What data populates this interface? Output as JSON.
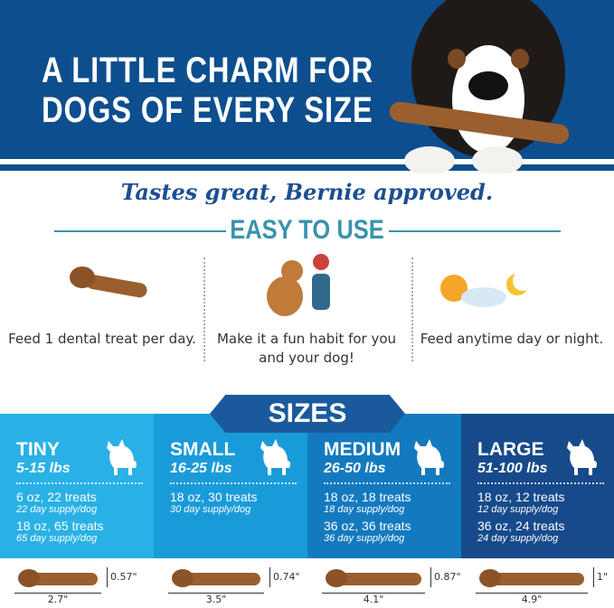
{
  "header": {
    "title_lines": [
      "A LITTLE CHARM FOR",
      "DOGS OF EVERY SIZE"
    ],
    "bg_color": "#0d4e8e"
  },
  "tagline": "Tastes great, Bernie approved.",
  "easy": {
    "heading": "EASY TO USE",
    "color": "#3a93ad",
    "items": [
      {
        "icon": "dental-treat-icon",
        "text": "Feed 1 dental treat per day."
      },
      {
        "icon": "dog-high-five-icon",
        "text": "Make it a fun habit for you and your dog!"
      },
      {
        "icon": "sun-moon-icon",
        "text": "Feed anytime day or night."
      }
    ]
  },
  "sizes": {
    "heading": "SIZES",
    "items": [
      {
        "name": "TINY",
        "weight": "5-15 lbs",
        "color": "#29b1e6",
        "packs": [
          {
            "pack": "6 oz, 22 treats",
            "supply": "22 day supply/dog"
          },
          {
            "pack": "18 oz, 65 treats",
            "supply": "65 day supply/dog"
          }
        ],
        "length": "2.7\"",
        "height": "0.57\""
      },
      {
        "name": "SMALL",
        "weight": "16-25 lbs",
        "color": "#1a9bd9",
        "packs": [
          {
            "pack": "18 oz, 30 treats",
            "supply": "30 day supply/dog"
          }
        ],
        "length": "3.5\"",
        "height": "0.74\""
      },
      {
        "name": "MEDIUM",
        "weight": "26-50 lbs",
        "color": "#137abf",
        "packs": [
          {
            "pack": "18 oz, 18 treats",
            "supply": "18 day supply/dog"
          },
          {
            "pack": "36 oz, 36 treats",
            "supply": "36 day supply/dog"
          }
        ],
        "length": "4.1\"",
        "height": "0.87\""
      },
      {
        "name": "LARGE",
        "weight": "51-100 lbs",
        "color": "#164a8b",
        "packs": [
          {
            "pack": "18 oz, 12 treats",
            "supply": "12 day supply/dog"
          },
          {
            "pack": "36 oz, 24 treats",
            "supply": "24 day supply/dog"
          }
        ],
        "length": "4.9\"",
        "height": "1\""
      }
    ]
  }
}
